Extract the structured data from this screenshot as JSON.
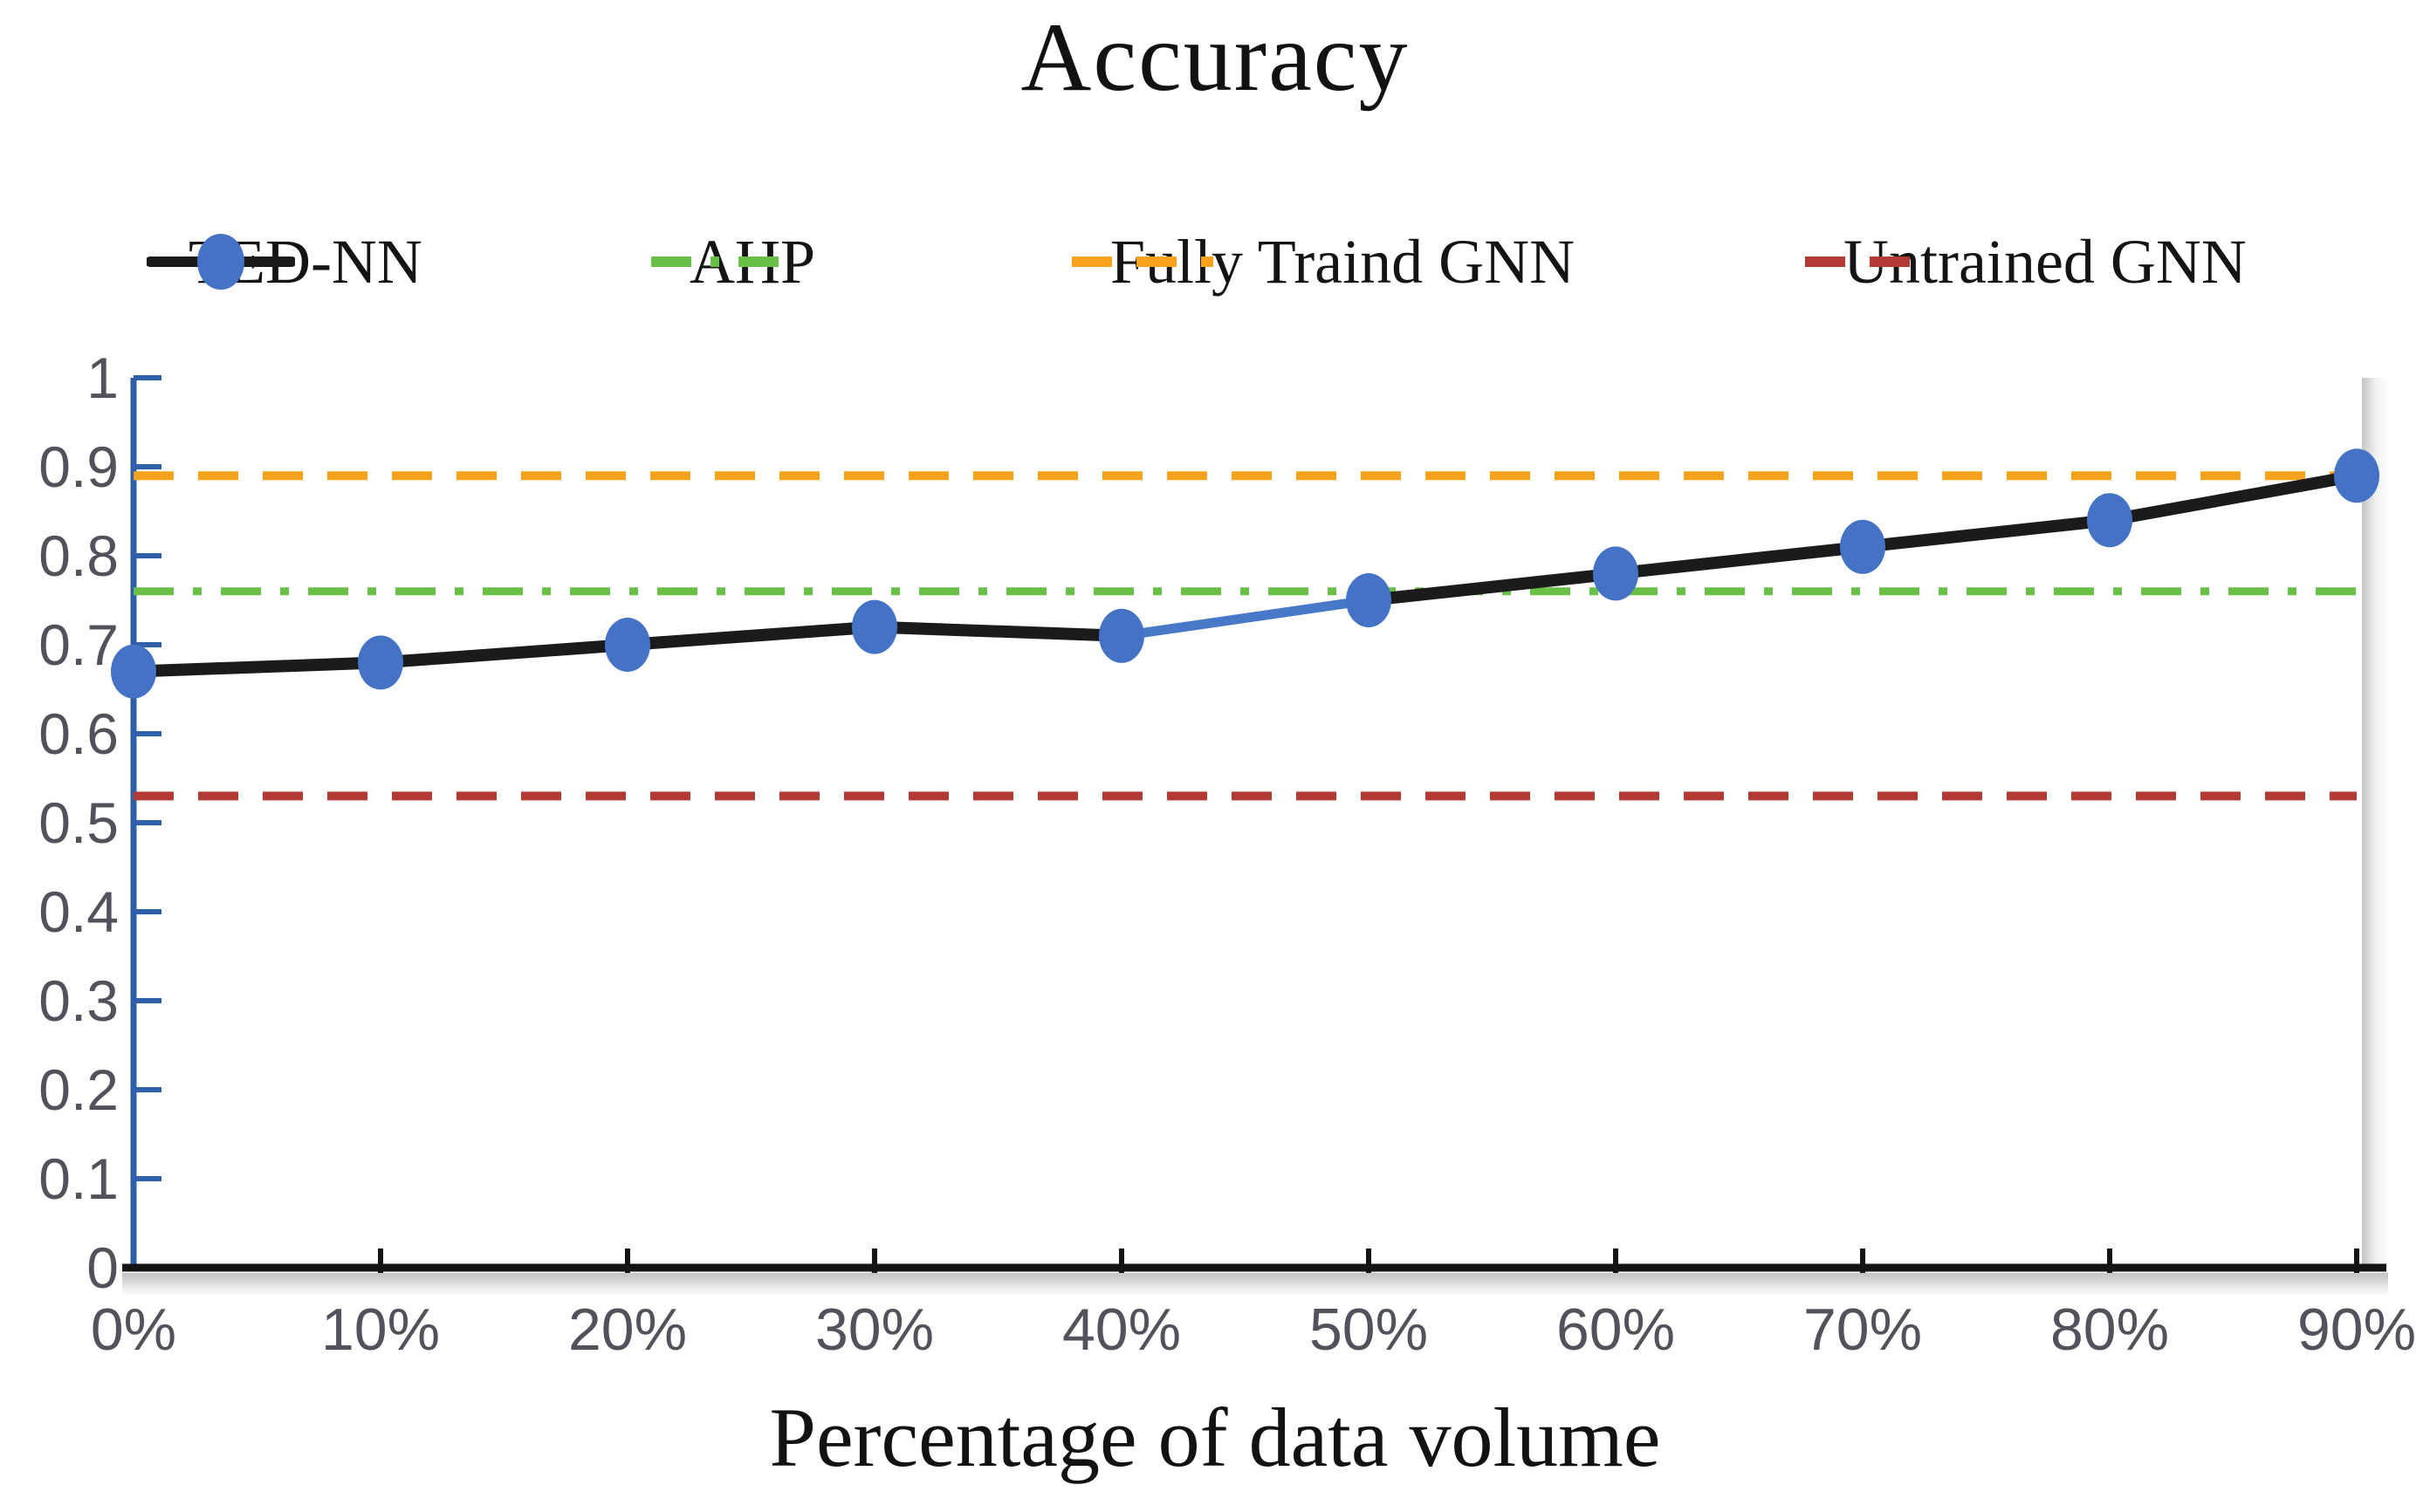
{
  "page": {
    "background": "#ffffff"
  },
  "chart_data": {
    "type": "line",
    "title": "Accuracy",
    "xlabel": "Percentage of data volume",
    "ylabel": "",
    "categories": [
      "0%",
      "10%",
      "20%",
      "30%",
      "40%",
      "50%",
      "60%",
      "70%",
      "80%",
      "90%"
    ],
    "yticks": [
      "0",
      "0.1",
      "0.2",
      "0.3",
      "0.4",
      "0.5",
      "0.6",
      "0.7",
      "0.8",
      "0.9",
      "1"
    ],
    "ylim": [
      0,
      1
    ],
    "grid": false,
    "legend_position": "top",
    "series": [
      {
        "name": "TED-NN",
        "type": "line",
        "values": [
          0.67,
          0.68,
          0.7,
          0.72,
          0.71,
          0.75,
          0.78,
          0.81,
          0.84,
          0.89
        ],
        "line_color": "#1b1b1b",
        "marker": "circle",
        "marker_color": "#4472c4",
        "highlight_segment": {
          "start_index": 4,
          "end_index": 5,
          "color": "#4878c8"
        }
      },
      {
        "name": "AHP",
        "type": "hline",
        "value": 0.76,
        "line_color": "#6abf47",
        "dash": "dashdot"
      },
      {
        "name": "Fully Traind GNN",
        "type": "hline",
        "value": 0.89,
        "line_color": "#f6a21c",
        "dash": "dashed"
      },
      {
        "name": "Untrained GNN",
        "type": "hline",
        "value": 0.53,
        "line_color": "#b43a36",
        "dash": "dashed"
      }
    ],
    "axis_colors": {
      "y_axis": "#2e5fa8",
      "x_axis": "#141414",
      "tick_labels": "#53515c"
    }
  }
}
